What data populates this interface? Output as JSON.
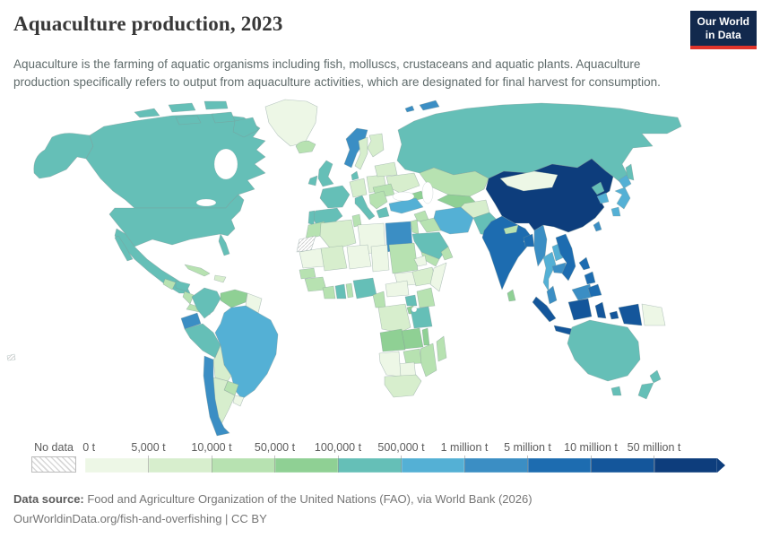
{
  "header": {
    "title": "Aquaculture production, 2023",
    "logo_line1": "Our World",
    "logo_line2": "in Data",
    "logo_bg": "#12294d",
    "logo_red": "#e0342b"
  },
  "subtitle": "Aquaculture is the farming of aquatic organisms including fish, molluscs, crustaceans and aquatic plants. Aquaculture production specifically refers to output from aquaculture activities, which are designated for final harvest for consumption.",
  "legend": {
    "no_data_label": "No data",
    "ticks": [
      "0 t",
      "5,000 t",
      "10,000 t",
      "50,000 t",
      "100,000 t",
      "500,000 t",
      "1 million t",
      "5 million t",
      "10 million t",
      "50 million t"
    ],
    "colors": [
      "#edf7e6",
      "#d7eecd",
      "#b7e2b1",
      "#8fd094",
      "#65bfb7",
      "#54b0d5",
      "#3b8ec4",
      "#1d6cb0",
      "#14569b",
      "#0d3d7c"
    ]
  },
  "footer": {
    "source_label": "Data source:",
    "source_text": " Food and Agriculture Organization of the United Nations (FAO), via World Bank (2026)",
    "citation": "OurWorldinData.org/fish-and-overfishing | CC BY"
  },
  "chart_data": {
    "type": "choropleth",
    "title": "Aquaculture production, 2023",
    "unit": "tonnes (t)",
    "legend_bins": [
      "0 t",
      "5,000 t",
      "10,000 t",
      "50,000 t",
      "100,000 t",
      "500,000 t",
      "1 million t",
      "5 million t",
      "10 million t",
      "50 million t"
    ],
    "palette": [
      "#edf7e6",
      "#d7eecd",
      "#b7e2b1",
      "#8fd094",
      "#65bfb7",
      "#54b0d5",
      "#3b8ec4",
      "#1d6cb0",
      "#14569b",
      "#0d3d7c"
    ],
    "no_data_fill": "hatch",
    "country_bins": {
      "canada": 4,
      "usa": 4,
      "mexico": 4,
      "greenland": 0,
      "cuba": 2,
      "hispaniola": 1,
      "guatemala": 2,
      "honduras": 4,
      "nicaragua": 2,
      "costa_rica_panama": 2,
      "colombia": 4,
      "venezuela": 3,
      "guyanas": 0,
      "ecuador": 6,
      "peru": 4,
      "brazil": 5,
      "bolivia": 1,
      "paraguay": 2,
      "chile": 6,
      "argentina": 1,
      "uruguay": 0,
      "iceland": 2,
      "svalbard": 6,
      "norway": 6,
      "sweden": 1,
      "finland": 1,
      "uk": 4,
      "ireland": 4,
      "denmark": 4,
      "germany": 1,
      "poland": 1,
      "france": 4,
      "spain": 4,
      "portugal": 4,
      "italy": 4,
      "balkans": 2,
      "greece": 4,
      "romania": 2,
      "ukraine": 1,
      "belarus_baltics": 1,
      "russia": 4,
      "kazakhstan": 2,
      "central_asia": 3,
      "caucasus": 3,
      "turkey": 5,
      "syria": 2,
      "levant": 2,
      "iraq": 2,
      "iran": 5,
      "afghanistan": 1,
      "pakistan": 4,
      "saudi_arabia": 4,
      "yemen": 2,
      "oman": 2,
      "india": 7,
      "nepal": 2,
      "sri_lanka": 3,
      "bangladesh": 7,
      "myanmar": 6,
      "thailand": 5,
      "laos": 5,
      "cambodia": 6,
      "vietnam": 7,
      "malaysia": 6,
      "china": 9,
      "mongolia": 0,
      "taiwan": 6,
      "north_korea": 4,
      "south_korea": 5,
      "japan": 5,
      "philippines": 7,
      "indonesia": 8,
      "papua_new_guinea": 0,
      "fiji": "nodata",
      "morocco": 2,
      "western_sahara": "nodata",
      "algeria": 1,
      "tunisia": 2,
      "libya": 0,
      "egypt": 6,
      "mauritania": 0,
      "mali": 1,
      "niger": 0,
      "chad": 0,
      "sudan": 2,
      "eritrea": 0,
      "ethiopia": 1,
      "somalia": 0,
      "senegal": 2,
      "guinea": 2,
      "ivory_coast": 2,
      "ghana": 4,
      "togo_benin": 2,
      "nigeria": 4,
      "cameroon": 2,
      "central_african_republic": 0,
      "south_sudan": 0,
      "uganda": 4,
      "kenya": 2,
      "dr_congo": 1,
      "rwanda_burundi": 3,
      "tanzania": 4,
      "angola": 3,
      "zambia": 3,
      "malawi": 3,
      "mozambique": 2,
      "zimbabwe": 2,
      "botswana": 0,
      "namibia": 0,
      "south_africa": 1,
      "madagascar": 2,
      "australia": 4,
      "new_zealand": 4
    }
  }
}
